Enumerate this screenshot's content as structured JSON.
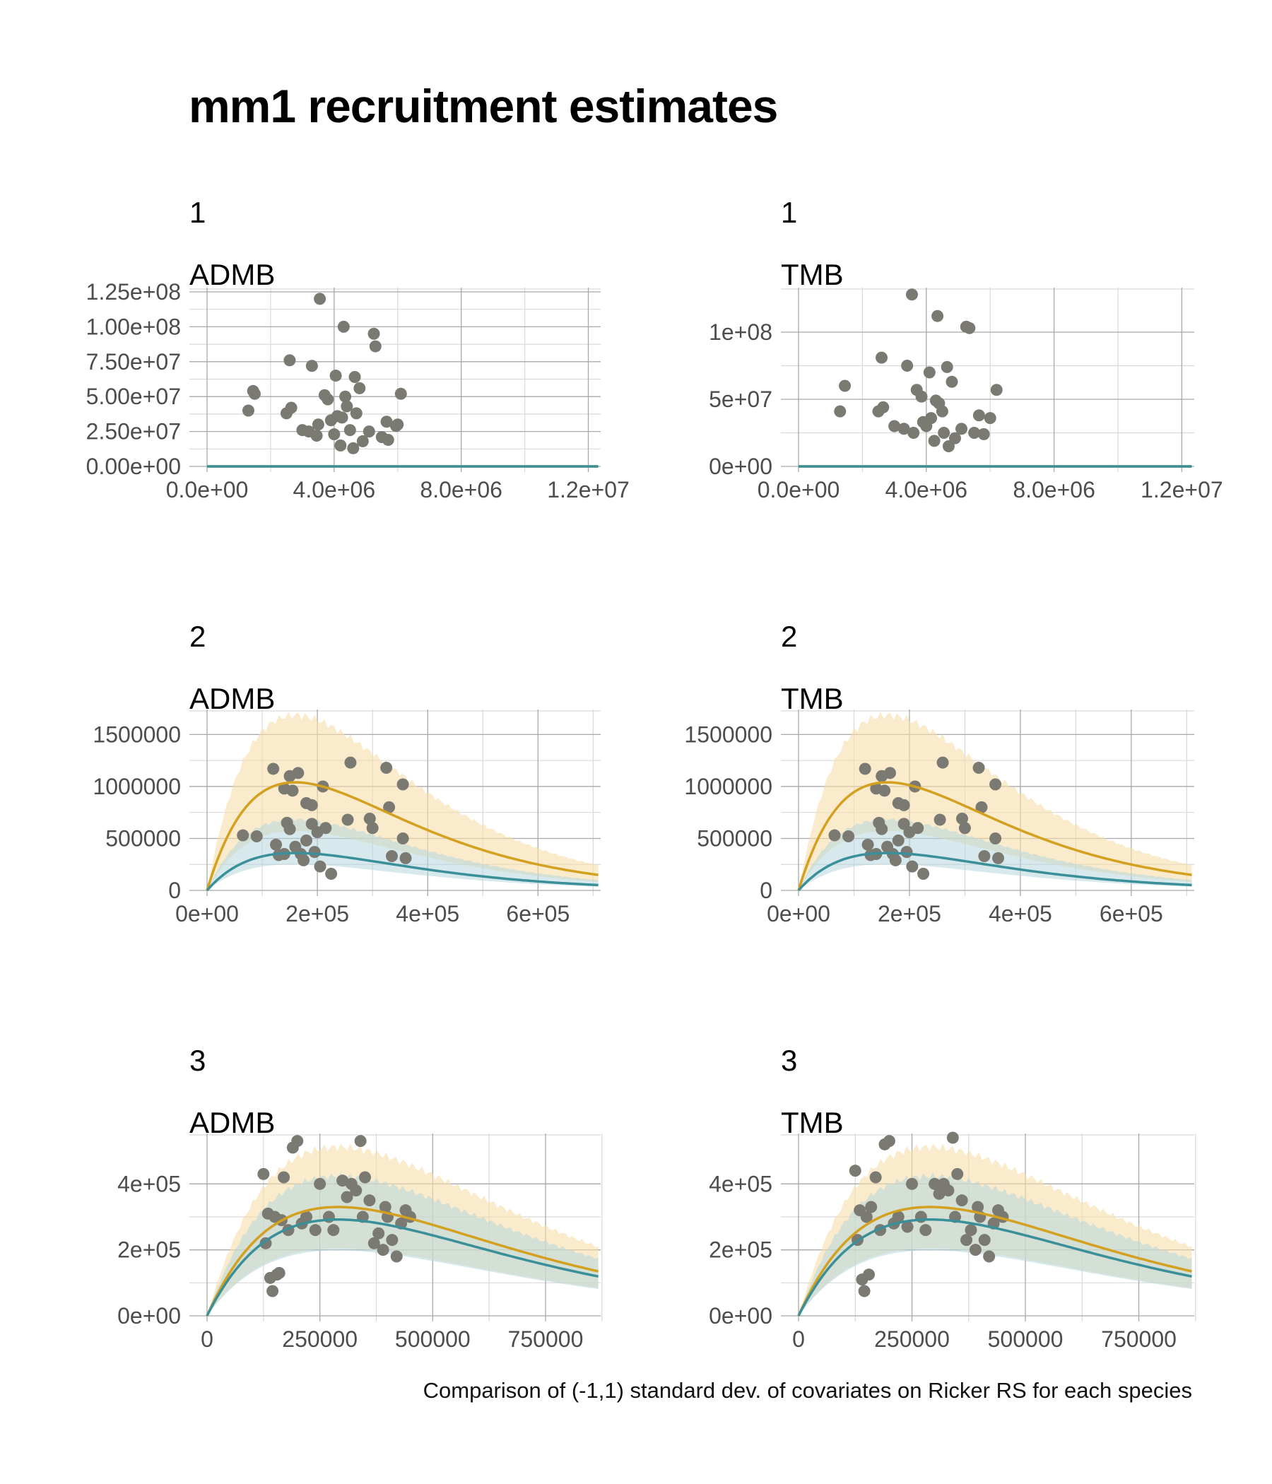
{
  "title": "mm1  recruitment estimates",
  "caption": "Comparison of (-1,1) standard dev. of covariates on Ricker RS for each species",
  "colors": {
    "high_line": "#D4A020",
    "high_band": "#F5DDA8",
    "low_line": "#3A8F99",
    "low_band": "#B7D7DE",
    "points": "#7A7A72",
    "grid_major": "#A8A8A8",
    "grid_minor": "#D9D9D9"
  },
  "chart_data": [
    {
      "type": "line",
      "species": "1",
      "model": "ADMB",
      "xlim": [
        0,
        12500000
      ],
      "ylim": [
        0,
        125000000
      ],
      "xticks": [
        0,
        4000000,
        8000000,
        12000000
      ],
      "xtick_labels": [
        "0.0e+00",
        "4.0e+06",
        "8.0e+06",
        "1.2e+07"
      ],
      "yticks": [
        0,
        25000000,
        50000000,
        75000000,
        100000000,
        125000000
      ],
      "ytick_labels": [
        "0.00e+00",
        "2.50e+07",
        "5.00e+07",
        "7.50e+07",
        "1.00e+08",
        "1.25e+08"
      ],
      "ricker": {
        "high": {
          "alpha": 71,
          "peak": 2700000,
          "band": [
            0.55,
            1.7
          ]
        },
        "low": {
          "alpha": 32,
          "peak": 2700000,
          "band": [
            0.7,
            1.55
          ]
        }
      },
      "points": [
        [
          1300000,
          40000000
        ],
        [
          1450000,
          54000000
        ],
        [
          1500000,
          52000000
        ],
        [
          2500000,
          38000000
        ],
        [
          2650000,
          42000000
        ],
        [
          2600000,
          76000000
        ],
        [
          3000000,
          26000000
        ],
        [
          3200000,
          25000000
        ],
        [
          3300000,
          72000000
        ],
        [
          3450000,
          22000000
        ],
        [
          3500000,
          30000000
        ],
        [
          3550000,
          120000000
        ],
        [
          3700000,
          51000000
        ],
        [
          3800000,
          48000000
        ],
        [
          3900000,
          33000000
        ],
        [
          4000000,
          23000000
        ],
        [
          4050000,
          65000000
        ],
        [
          4100000,
          36000000
        ],
        [
          4200000,
          15000000
        ],
        [
          4250000,
          35000000
        ],
        [
          4300000,
          100000000
        ],
        [
          4350000,
          50000000
        ],
        [
          4400000,
          43000000
        ],
        [
          4500000,
          26000000
        ],
        [
          4600000,
          13000000
        ],
        [
          4650000,
          64000000
        ],
        [
          4700000,
          38000000
        ],
        [
          4800000,
          56000000
        ],
        [
          4900000,
          18000000
        ],
        [
          5100000,
          25000000
        ],
        [
          5250000,
          95000000
        ],
        [
          5300000,
          86000000
        ],
        [
          5500000,
          21000000
        ],
        [
          5650000,
          32000000
        ],
        [
          5700000,
          19000000
        ],
        [
          5950000,
          29000000
        ],
        [
          6000000,
          30000000
        ],
        [
          6100000,
          52000000
        ]
      ]
    },
    {
      "type": "line",
      "species": "1",
      "model": "TMB",
      "xlim": [
        0,
        12500000
      ],
      "ylim": [
        0,
        130000000
      ],
      "xticks": [
        0,
        4000000,
        8000000,
        12000000
      ],
      "xtick_labels": [
        "0.0e+00",
        "4.0e+06",
        "8.0e+06",
        "1.2e+07"
      ],
      "yticks": [
        0,
        50000000,
        100000000
      ],
      "ytick_labels": [
        "0e+00",
        "5e+07",
        "1e+08"
      ],
      "ricker": {
        "high": {
          "alpha": 72,
          "peak": 2700000,
          "band": [
            0.55,
            1.65
          ]
        },
        "low": {
          "alpha": 32,
          "peak": 2700000,
          "band": [
            0.7,
            1.55
          ]
        }
      },
      "points": [
        [
          1300000,
          41000000
        ],
        [
          1450000,
          60000000
        ],
        [
          2500000,
          41000000
        ],
        [
          2650000,
          44000000
        ],
        [
          2600000,
          81000000
        ],
        [
          3000000,
          30000000
        ],
        [
          3300000,
          28000000
        ],
        [
          3400000,
          75000000
        ],
        [
          3550000,
          128000000
        ],
        [
          3600000,
          25000000
        ],
        [
          3700000,
          57000000
        ],
        [
          3850000,
          52000000
        ],
        [
          3900000,
          33000000
        ],
        [
          4000000,
          30000000
        ],
        [
          4100000,
          70000000
        ],
        [
          4150000,
          36000000
        ],
        [
          4250000,
          19000000
        ],
        [
          4300000,
          49000000
        ],
        [
          4350000,
          112000000
        ],
        [
          4400000,
          47000000
        ],
        [
          4500000,
          41000000
        ],
        [
          4550000,
          25000000
        ],
        [
          4650000,
          74000000
        ],
        [
          4700000,
          15000000
        ],
        [
          4800000,
          63000000
        ],
        [
          4900000,
          21000000
        ],
        [
          5100000,
          28000000
        ],
        [
          5250000,
          104000000
        ],
        [
          5350000,
          103000000
        ],
        [
          5500000,
          25000000
        ],
        [
          5650000,
          38000000
        ],
        [
          5800000,
          24000000
        ],
        [
          6000000,
          36000000
        ],
        [
          6200000,
          57000000
        ]
      ]
    },
    {
      "type": "line",
      "species": "2",
      "model": "ADMB",
      "xlim": [
        0,
        720000
      ],
      "ylim": [
        0,
        1700000
      ],
      "xticks": [
        0,
        200000,
        400000,
        600000
      ],
      "xtick_labels": [
        "0e+00",
        "2e+05",
        "4e+05",
        "6e+05"
      ],
      "yticks": [
        0,
        500000,
        1000000,
        1500000
      ],
      "ytick_labels": [
        "0",
        "500000",
        "1000000",
        "1500000"
      ],
      "ricker": {
        "high": {
          "alpha": 1040000,
          "peak": 160000,
          "band": [
            0.55,
            1.62
          ]
        },
        "low": {
          "alpha": 360000,
          "peak": 160000,
          "band": [
            0.7,
            1.9
          ]
        }
      },
      "points": [
        [
          65000,
          530000
        ],
        [
          90000,
          520000
        ],
        [
          120000,
          1170000
        ],
        [
          125000,
          440000
        ],
        [
          130000,
          340000
        ],
        [
          140000,
          980000
        ],
        [
          140000,
          350000
        ],
        [
          145000,
          650000
        ],
        [
          150000,
          1100000
        ],
        [
          150000,
          590000
        ],
        [
          155000,
          960000
        ],
        [
          160000,
          420000
        ],
        [
          165000,
          1130000
        ],
        [
          170000,
          350000
        ],
        [
          175000,
          290000
        ],
        [
          180000,
          840000
        ],
        [
          180000,
          480000
        ],
        [
          190000,
          820000
        ],
        [
          190000,
          640000
        ],
        [
          195000,
          370000
        ],
        [
          200000,
          560000
        ],
        [
          205000,
          230000
        ],
        [
          210000,
          1000000
        ],
        [
          215000,
          600000
        ],
        [
          225000,
          160000
        ],
        [
          255000,
          680000
        ],
        [
          260000,
          1230000
        ],
        [
          295000,
          690000
        ],
        [
          300000,
          600000
        ],
        [
          325000,
          1180000
        ],
        [
          330000,
          800000
        ],
        [
          335000,
          330000
        ],
        [
          355000,
          1020000
        ],
        [
          355000,
          500000
        ],
        [
          360000,
          310000
        ]
      ]
    },
    {
      "type": "line",
      "species": "2",
      "model": "TMB",
      "xlim": [
        0,
        720000
      ],
      "ylim": [
        0,
        1700000
      ],
      "xticks": [
        0,
        200000,
        400000,
        600000
      ],
      "xtick_labels": [
        "0e+00",
        "2e+05",
        "4e+05",
        "6e+05"
      ],
      "yticks": [
        0,
        500000,
        1000000,
        1500000
      ],
      "ytick_labels": [
        "0",
        "500000",
        "1000000",
        "1500000"
      ],
      "ricker": {
        "high": {
          "alpha": 1040000,
          "peak": 160000,
          "band": [
            0.55,
            1.62
          ]
        },
        "low": {
          "alpha": 360000,
          "peak": 160000,
          "band": [
            0.7,
            1.9
          ]
        }
      },
      "points": [
        [
          65000,
          530000
        ],
        [
          90000,
          520000
        ],
        [
          120000,
          1170000
        ],
        [
          125000,
          440000
        ],
        [
          130000,
          340000
        ],
        [
          140000,
          980000
        ],
        [
          140000,
          350000
        ],
        [
          145000,
          650000
        ],
        [
          150000,
          1100000
        ],
        [
          150000,
          590000
        ],
        [
          155000,
          960000
        ],
        [
          160000,
          420000
        ],
        [
          165000,
          1130000
        ],
        [
          170000,
          350000
        ],
        [
          175000,
          290000
        ],
        [
          180000,
          840000
        ],
        [
          180000,
          480000
        ],
        [
          190000,
          820000
        ],
        [
          190000,
          640000
        ],
        [
          195000,
          370000
        ],
        [
          200000,
          560000
        ],
        [
          205000,
          230000
        ],
        [
          210000,
          1000000
        ],
        [
          215000,
          600000
        ],
        [
          225000,
          160000
        ],
        [
          255000,
          680000
        ],
        [
          260000,
          1230000
        ],
        [
          295000,
          690000
        ],
        [
          300000,
          600000
        ],
        [
          325000,
          1180000
        ],
        [
          330000,
          800000
        ],
        [
          335000,
          330000
        ],
        [
          355000,
          1020000
        ],
        [
          355000,
          500000
        ],
        [
          360000,
          310000
        ]
      ]
    },
    {
      "type": "line",
      "species": "3",
      "model": "ADMB",
      "xlim": [
        0,
        880000
      ],
      "ylim": [
        0,
        540000
      ],
      "xticks": [
        0,
        250000,
        500000,
        750000
      ],
      "xtick_labels": [
        "0",
        "250000",
        "500000",
        "750000"
      ],
      "yticks": [
        0,
        200000,
        400000
      ],
      "ytick_labels": [
        "0e+00",
        "2e+05",
        "4e+05"
      ],
      "ricker": {
        "high": {
          "alpha": 330000,
          "peak": 290000,
          "band": [
            0.62,
            1.55
          ]
        },
        "low": {
          "alpha": 292000,
          "peak": 290000,
          "band": [
            0.68,
            1.45
          ]
        }
      },
      "points": [
        [
          125000,
          430000
        ],
        [
          130000,
          220000
        ],
        [
          135000,
          310000
        ],
        [
          140000,
          115000
        ],
        [
          145000,
          75000
        ],
        [
          150000,
          300000
        ],
        [
          155000,
          125000
        ],
        [
          160000,
          130000
        ],
        [
          165000,
          290000
        ],
        [
          170000,
          420000
        ],
        [
          180000,
          260000
        ],
        [
          190000,
          510000
        ],
        [
          200000,
          530000
        ],
        [
          210000,
          280000
        ],
        [
          220000,
          300000
        ],
        [
          240000,
          260000
        ],
        [
          250000,
          400000
        ],
        [
          270000,
          300000
        ],
        [
          280000,
          260000
        ],
        [
          300000,
          410000
        ],
        [
          310000,
          360000
        ],
        [
          320000,
          400000
        ],
        [
          330000,
          380000
        ],
        [
          340000,
          530000
        ],
        [
          345000,
          300000
        ],
        [
          350000,
          420000
        ],
        [
          360000,
          350000
        ],
        [
          370000,
          220000
        ],
        [
          380000,
          250000
        ],
        [
          390000,
          200000
        ],
        [
          395000,
          330000
        ],
        [
          400000,
          300000
        ],
        [
          410000,
          230000
        ],
        [
          420000,
          180000
        ],
        [
          430000,
          280000
        ],
        [
          440000,
          320000
        ],
        [
          450000,
          300000
        ]
      ]
    },
    {
      "type": "line",
      "species": "3",
      "model": "TMB",
      "xlim": [
        0,
        880000
      ],
      "ylim": [
        0,
        540000
      ],
      "xticks": [
        0,
        250000,
        500000,
        750000
      ],
      "xtick_labels": [
        "0",
        "250000",
        "500000",
        "750000"
      ],
      "yticks": [
        0,
        200000,
        400000
      ],
      "ytick_labels": [
        "0e+00",
        "2e+05",
        "4e+05"
      ],
      "ricker": {
        "high": {
          "alpha": 330000,
          "peak": 290000,
          "band": [
            0.62,
            1.55
          ]
        },
        "low": {
          "alpha": 292000,
          "peak": 290000,
          "band": [
            0.68,
            1.45
          ]
        }
      },
      "points": [
        [
          125000,
          440000
        ],
        [
          130000,
          230000
        ],
        [
          135000,
          320000
        ],
        [
          140000,
          110000
        ],
        [
          145000,
          75000
        ],
        [
          150000,
          300000
        ],
        [
          155000,
          125000
        ],
        [
          160000,
          330000
        ],
        [
          170000,
          420000
        ],
        [
          180000,
          260000
        ],
        [
          190000,
          520000
        ],
        [
          200000,
          530000
        ],
        [
          210000,
          280000
        ],
        [
          220000,
          300000
        ],
        [
          240000,
          270000
        ],
        [
          250000,
          400000
        ],
        [
          270000,
          300000
        ],
        [
          280000,
          260000
        ],
        [
          300000,
          400000
        ],
        [
          310000,
          370000
        ],
        [
          320000,
          400000
        ],
        [
          330000,
          380000
        ],
        [
          340000,
          540000
        ],
        [
          345000,
          300000
        ],
        [
          350000,
          430000
        ],
        [
          360000,
          350000
        ],
        [
          370000,
          230000
        ],
        [
          380000,
          260000
        ],
        [
          390000,
          200000
        ],
        [
          395000,
          330000
        ],
        [
          400000,
          300000
        ],
        [
          410000,
          230000
        ],
        [
          420000,
          180000
        ],
        [
          430000,
          280000
        ],
        [
          440000,
          320000
        ],
        [
          450000,
          300000
        ]
      ]
    }
  ]
}
